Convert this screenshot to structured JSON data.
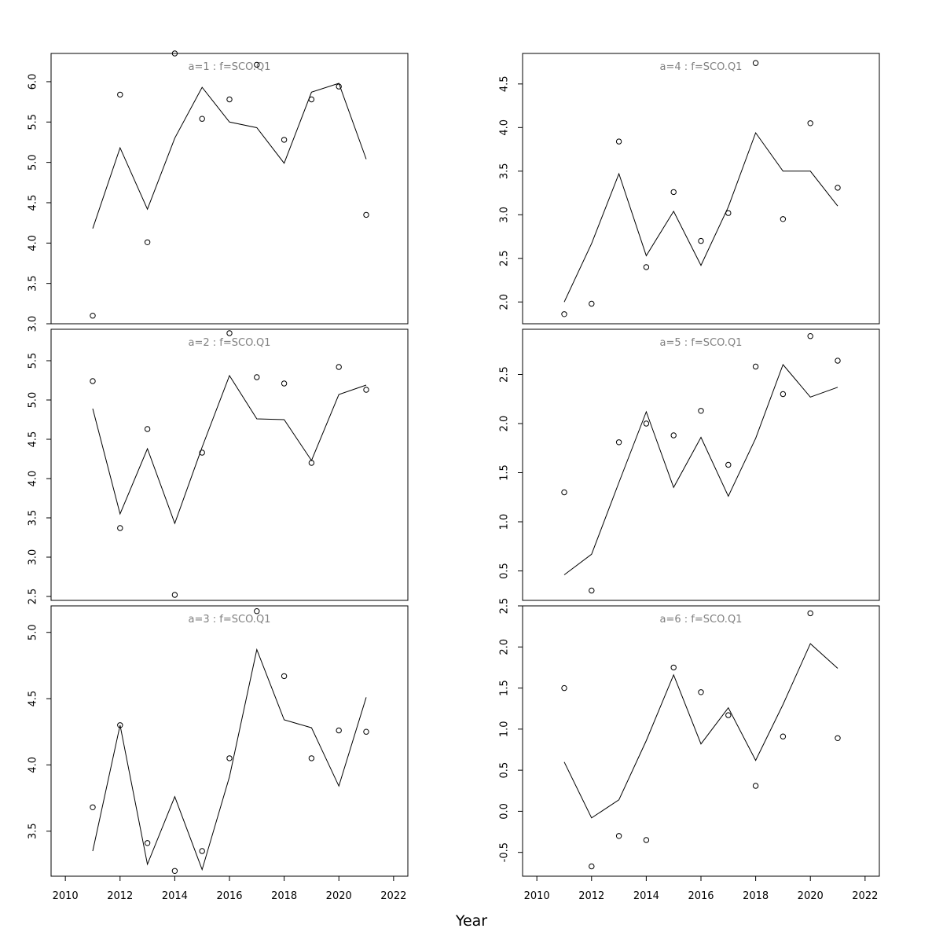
{
  "figure": {
    "xlabel": "Year"
  },
  "style": {
    "line_color": "#000000",
    "point_color": "#000000",
    "title_color": "#808080",
    "frame_color": "#000000"
  },
  "chart_data": [
    {
      "type": "line",
      "title": "a=1  :  f=SCO.Q1",
      "x": [
        2011,
        2012,
        2013,
        2014,
        2015,
        2016,
        2017,
        2018,
        2019,
        2020,
        2021
      ],
      "series": [
        {
          "type": "line",
          "values": [
            4.18,
            5.18,
            4.42,
            5.3,
            5.93,
            5.5,
            5.43,
            4.99,
            5.87,
            5.98,
            5.04
          ]
        },
        {
          "type": "scatter",
          "values": [
            3.1,
            5.84,
            4.01,
            6.35,
            5.54,
            5.78,
            6.21,
            5.28,
            5.78,
            5.94,
            4.35
          ]
        }
      ],
      "xlim": [
        2010,
        2022
      ],
      "ylim": [
        3.0,
        6.35
      ],
      "yticks": [
        "3.0",
        "3.5",
        "4.0",
        "4.5",
        "5.0",
        "5.5",
        "6.0"
      ],
      "xticks": []
    },
    {
      "type": "line",
      "title": "a=2  :  f=SCO.Q1",
      "x": [
        2011,
        2012,
        2013,
        2014,
        2015,
        2016,
        2017,
        2018,
        2019,
        2020,
        2021
      ],
      "series": [
        {
          "type": "line",
          "values": [
            4.89,
            3.55,
            4.38,
            3.43,
            4.4,
            5.31,
            4.76,
            4.75,
            4.23,
            5.07,
            5.19
          ]
        },
        {
          "type": "scatter",
          "values": [
            5.24,
            3.37,
            4.63,
            2.52,
            4.33,
            5.85,
            5.29,
            5.21,
            4.2,
            5.42,
            5.13
          ]
        }
      ],
      "xlim": [
        2010,
        2022
      ],
      "ylim": [
        2.45,
        5.9
      ],
      "yticks": [
        "2.5",
        "3.0",
        "3.5",
        "4.0",
        "4.5",
        "5.0",
        "5.5"
      ],
      "xticks": []
    },
    {
      "type": "line",
      "title": "a=3  :  f=SCO.Q1",
      "x": [
        2011,
        2012,
        2013,
        2014,
        2015,
        2016,
        2017,
        2018,
        2019,
        2020,
        2021
      ],
      "series": [
        {
          "type": "line",
          "values": [
            3.35,
            4.3,
            3.25,
            3.76,
            3.21,
            3.91,
            4.87,
            4.34,
            4.28,
            3.84,
            4.51
          ]
        },
        {
          "type": "scatter",
          "values": [
            3.68,
            4.3,
            3.41,
            3.2,
            3.35,
            4.05,
            5.16,
            4.67,
            4.05,
            4.26,
            4.25
          ]
        }
      ],
      "xlim": [
        2010,
        2022
      ],
      "ylim": [
        3.16,
        5.2
      ],
      "yticks": [
        "3.5",
        "4.0",
        "4.5",
        "5.0"
      ],
      "xticks": [
        "2010",
        "2012",
        "2014",
        "2016",
        "2018",
        "2020",
        "2022"
      ]
    },
    {
      "type": "line",
      "title": "a=4  :  f=SCO.Q1",
      "x": [
        2011,
        2012,
        2013,
        2014,
        2015,
        2016,
        2017,
        2018,
        2019,
        2020,
        2021
      ],
      "series": [
        {
          "type": "line",
          "values": [
            2.0,
            2.67,
            3.47,
            2.53,
            3.04,
            2.42,
            3.09,
            3.94,
            3.5,
            3.5,
            3.1
          ]
        },
        {
          "type": "scatter",
          "values": [
            1.86,
            1.98,
            3.84,
            2.4,
            3.26,
            2.7,
            3.02,
            4.74,
            2.95,
            4.05,
            3.31
          ]
        }
      ],
      "xlim": [
        2010,
        2022
      ],
      "ylim": [
        1.75,
        4.85
      ],
      "yticks": [
        "2.0",
        "2.5",
        "3.0",
        "3.5",
        "4.0",
        "4.5"
      ],
      "xticks": []
    },
    {
      "type": "line",
      "title": "a=5  :  f=SCO.Q1",
      "x": [
        2011,
        2012,
        2013,
        2014,
        2015,
        2016,
        2017,
        2018,
        2019,
        2020,
        2021
      ],
      "series": [
        {
          "type": "line",
          "values": [
            0.46,
            0.67,
            1.4,
            2.12,
            1.35,
            1.86,
            1.26,
            1.85,
            2.6,
            2.27,
            2.37
          ]
        },
        {
          "type": "scatter",
          "values": [
            1.3,
            0.3,
            1.81,
            2.0,
            1.88,
            2.13,
            1.58,
            2.58,
            2.3,
            2.89,
            2.64
          ]
        }
      ],
      "xlim": [
        2010,
        2022
      ],
      "ylim": [
        0.2,
        2.96
      ],
      "yticks": [
        "0.5",
        "1.0",
        "1.5",
        "2.0",
        "2.5"
      ],
      "xticks": []
    },
    {
      "type": "line",
      "title": "a=6  :  f=SCO.Q1",
      "x": [
        2011,
        2012,
        2013,
        2014,
        2015,
        2016,
        2017,
        2018,
        2019,
        2020,
        2021
      ],
      "series": [
        {
          "type": "line",
          "values": [
            0.6,
            -0.08,
            0.14,
            0.86,
            1.66,
            0.82,
            1.26,
            0.62,
            1.3,
            2.04,
            1.74
          ]
        },
        {
          "type": "scatter",
          "values": [
            1.5,
            -0.67,
            -0.3,
            -0.35,
            1.75,
            1.45,
            1.17,
            0.31,
            0.91,
            2.41,
            0.89
          ]
        }
      ],
      "xlim": [
        2010,
        2022
      ],
      "ylim": [
        -0.79,
        2.5
      ],
      "yticks": [
        "-0.5",
        "0.0",
        "0.5",
        "1.0",
        "1.5",
        "2.0",
        "2.5"
      ],
      "xticks": [
        "2010",
        "2012",
        "2014",
        "2016",
        "2018",
        "2020",
        "2022"
      ]
    }
  ]
}
